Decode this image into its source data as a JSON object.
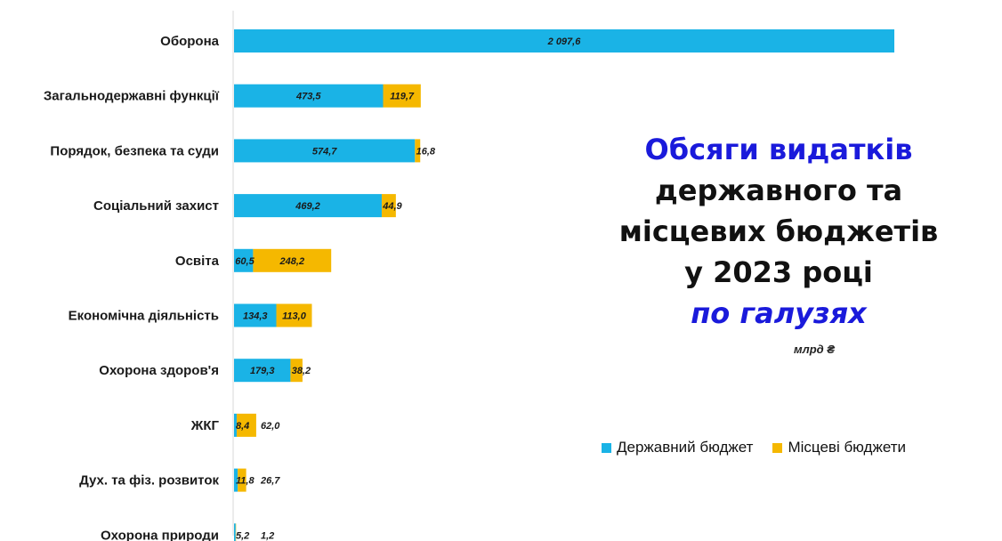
{
  "chart_data": {
    "type": "bar",
    "orientation": "horizontal",
    "stacked": true,
    "title_lines": [
      "Обсяги видатків",
      "державного та",
      "місцевих бюджетів",
      "у 2023 році",
      "по галузях"
    ],
    "unit": "млрд ₴",
    "categories": [
      "Оборона",
      "Загальнодержавні функції",
      "Порядок, безпека та суди",
      "Соціальний захист",
      "Освіта",
      "Економічна діяльність",
      "Охорона здоров'я",
      "ЖКГ",
      "Дух. та фіз. розвиток",
      "Охорона природи"
    ],
    "series": [
      {
        "name": "Державний бюджет",
        "color": "#1ab3e6",
        "values": [
          2097.6,
          473.5,
          574.7,
          469.2,
          60.5,
          134.3,
          179.3,
          8.4,
          11.8,
          5.2
        ],
        "labels": [
          "2 097,6",
          "473,5",
          "574,7",
          "469,2",
          "60,5",
          "134,3",
          "179,3",
          "8,4",
          "11,8",
          "5,2"
        ]
      },
      {
        "name": "Місцеві бюджети",
        "color": "#f5b800",
        "values": [
          null,
          119.7,
          16.8,
          44.9,
          248.2,
          113.0,
          38.2,
          62.0,
          26.7,
          1.2
        ],
        "labels": [
          "",
          "119,7",
          "16,8",
          "44,9",
          "248,2",
          "113,0",
          "38,2",
          "62,0",
          "26,7",
          "1,2"
        ]
      }
    ],
    "legend_position": "right",
    "grid": false
  }
}
